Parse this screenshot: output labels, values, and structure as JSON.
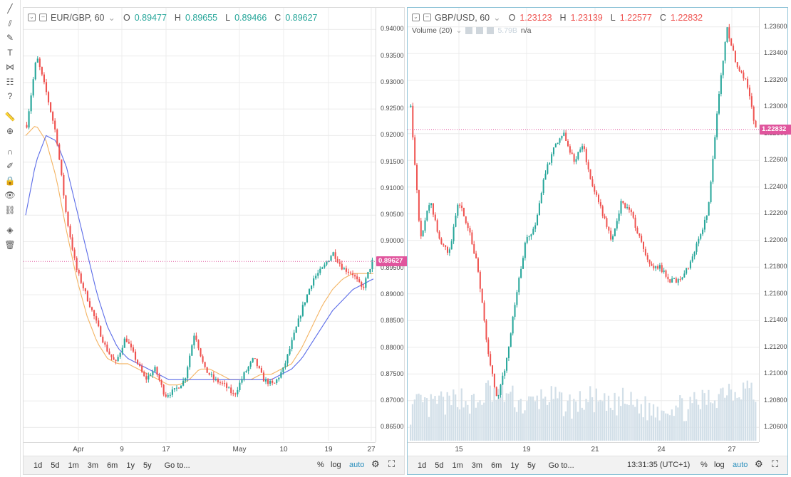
{
  "colors": {
    "up": "#26a69a",
    "down": "#ef5350",
    "ma_fast": "#f4b463",
    "ma_slow": "#5b6ce8",
    "grid": "#ececec",
    "tag": "#e0559d",
    "volume": "#d2dfe8",
    "ohlc_left": "#26a69a",
    "ohlc_right": "#ef5350"
  },
  "toolbar": {
    "icons": [
      "trend-line-icon",
      "pitchfork-icon",
      "brush-icon",
      "text-icon",
      "pattern-icon",
      "gann-icon",
      "question-icon",
      "ruler-icon",
      "zoom-icon",
      "magnet-icon",
      "lock-drawing-icon",
      "lock-icon",
      "eye-icon",
      "link-icon",
      "layers-icon",
      "trash-icon"
    ]
  },
  "left": {
    "symbol": "EUR/GBP, 60",
    "open_label": "O",
    "open": "0.89477",
    "high_label": "H",
    "high": "0.89655",
    "low_label": "L",
    "low": "0.89466",
    "close_label": "C",
    "close": "0.89627",
    "price_tag": "0.89627",
    "yticks": [
      "0.94000",
      "0.93500",
      "0.93000",
      "0.92500",
      "0.92000",
      "0.91500",
      "0.91000",
      "0.90500",
      "0.90000",
      "0.89500",
      "0.89000",
      "0.88500",
      "0.88000",
      "0.87500",
      "0.87000",
      "0.86500"
    ],
    "xticks": [
      "Apr",
      "9",
      "17",
      "May",
      "10",
      "19",
      "27"
    ],
    "bottom_buttons": [
      "1d",
      "5d",
      "1m",
      "3m",
      "6m",
      "1y",
      "5y",
      "Go to..."
    ],
    "percent": "%",
    "log": "log",
    "auto": "auto"
  },
  "right": {
    "symbol": "GBP/USD, 60",
    "open_label": "O",
    "open": "1.23123",
    "high_label": "H",
    "high": "1.23139",
    "low_label": "L",
    "low": "1.22577",
    "close_label": "C",
    "close": "1.22832",
    "volume_label": "Volume (20)",
    "volume_value": "5.79B",
    "volume_na": "n/a",
    "price_tag": "1.22832",
    "yticks": [
      "1.23600",
      "1.23400",
      "1.23200",
      "1.23000",
      "1.22800",
      "1.22600",
      "1.22400",
      "1.22200",
      "1.22000",
      "1.21800",
      "1.21600",
      "1.21400",
      "1.21200",
      "1.21000",
      "1.20800",
      "1.20600"
    ],
    "xticks": [
      "15",
      "19",
      "21",
      "24",
      "27"
    ],
    "bottom_buttons": [
      "1d",
      "5d",
      "1m",
      "3m",
      "6m",
      "1y",
      "5y",
      "Go to..."
    ],
    "time": "13:31:35 (UTC+1)",
    "percent": "%",
    "log": "log",
    "auto": "auto"
  },
  "chart_data": [
    {
      "type": "candlestick",
      "title": "EUR/GBP, 60",
      "ylim": [
        0.8625,
        0.943
      ],
      "x_labels": [
        "Apr",
        "9",
        "17",
        "May",
        "10",
        "19",
        "27"
      ],
      "close_path": [
        0.922,
        0.935,
        0.928,
        0.92,
        0.905,
        0.895,
        0.89,
        0.885,
        0.88,
        0.877,
        0.882,
        0.878,
        0.874,
        0.876,
        0.871,
        0.872,
        0.874,
        0.883,
        0.876,
        0.874,
        0.873,
        0.871,
        0.875,
        0.878,
        0.874,
        0.873,
        0.876,
        0.882,
        0.888,
        0.893,
        0.895,
        0.898,
        0.895,
        0.894,
        0.891,
        0.8963
      ],
      "ma_fast": [
        0.92,
        0.922,
        0.919,
        0.912,
        0.902,
        0.893,
        0.886,
        0.881,
        0.878,
        0.877,
        0.877,
        0.876,
        0.875,
        0.874,
        0.873,
        0.873,
        0.874,
        0.876,
        0.876,
        0.875,
        0.874,
        0.874,
        0.874,
        0.875,
        0.875,
        0.876,
        0.877,
        0.88,
        0.884,
        0.888,
        0.891,
        0.893,
        0.894,
        0.894,
        0.894
      ],
      "ma_slow": [
        0.905,
        0.915,
        0.92,
        0.919,
        0.914,
        0.906,
        0.898,
        0.89,
        0.884,
        0.88,
        0.878,
        0.877,
        0.876,
        0.875,
        0.874,
        0.874,
        0.874,
        0.874,
        0.874,
        0.874,
        0.874,
        0.874,
        0.874,
        0.874,
        0.874,
        0.875,
        0.876,
        0.878,
        0.881,
        0.884,
        0.887,
        0.889,
        0.891,
        0.892,
        0.893
      ],
      "last_price": 0.89627
    },
    {
      "type": "candlestick",
      "title": "GBP/USD, 60",
      "ylim": [
        1.205,
        1.237
      ],
      "x_labels": [
        "15",
        "19",
        "21",
        "24",
        "27"
      ],
      "close_path": [
        1.23,
        1.22,
        1.223,
        1.22,
        1.219,
        1.223,
        1.221,
        1.218,
        1.212,
        1.208,
        1.211,
        1.216,
        1.22,
        1.221,
        1.225,
        1.227,
        1.228,
        1.226,
        1.227,
        1.224,
        1.222,
        1.22,
        1.223,
        1.222,
        1.22,
        1.218,
        1.218,
        1.217,
        1.217,
        1.218,
        1.22,
        1.222,
        1.23,
        1.236,
        1.233,
        1.232,
        1.2283
      ],
      "volume_path": [
        0.25,
        0.32,
        0.28,
        0.35,
        0.3,
        0.4,
        0.33,
        0.3,
        0.45,
        0.38,
        0.42,
        0.35,
        0.3,
        0.33,
        0.4,
        0.36,
        0.32,
        0.3,
        0.34,
        0.37,
        0.3,
        0.28,
        0.35,
        0.32,
        0.3,
        0.26,
        0.28,
        0.31,
        0.29,
        0.27,
        0.33,
        0.36,
        0.4,
        0.48,
        0.44,
        0.5,
        0.38
      ],
      "last_price": 1.22832
    }
  ]
}
